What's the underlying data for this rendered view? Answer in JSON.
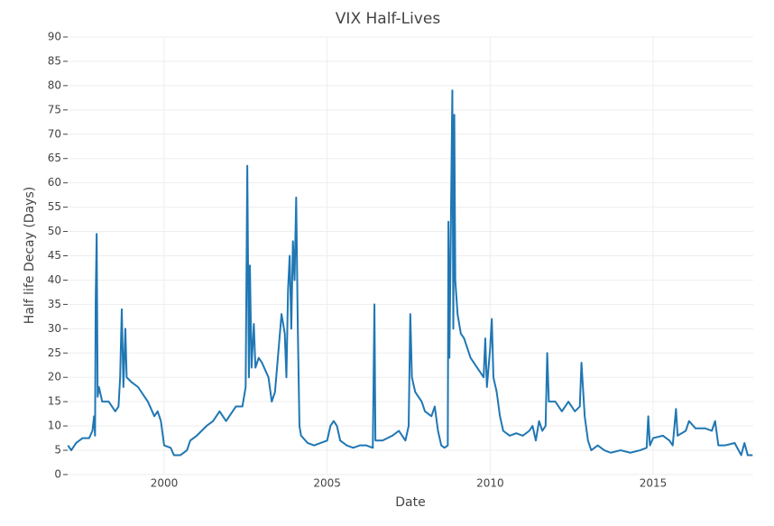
{
  "chart_data": {
    "type": "line",
    "title": "VIX Half-Lives",
    "x_label": "Date",
    "y_label": "Half life Decay (Days)",
    "color": "#1f77b4",
    "grid": true,
    "xlim": [
      1997.04,
      2018.07
    ],
    "xticks": [
      2000,
      2005,
      2010,
      2015
    ],
    "ylim": [
      0,
      90
    ],
    "yticks": [
      0,
      5,
      10,
      15,
      20,
      25,
      30,
      35,
      40,
      45,
      50,
      55,
      60,
      65,
      70,
      75,
      80,
      85,
      90
    ],
    "x": [
      1997.05,
      1997.15,
      1997.3,
      1997.5,
      1997.7,
      1997.8,
      1997.85,
      1997.88,
      1997.9,
      1997.93,
      1997.96,
      1998.0,
      1998.1,
      1998.3,
      1998.5,
      1998.6,
      1998.65,
      1998.7,
      1998.75,
      1998.81,
      1998.85,
      1999.0,
      1999.2,
      1999.4,
      1999.5,
      1999.7,
      1999.8,
      1999.9,
      2000.0,
      2000.2,
      2000.3,
      2000.5,
      2000.7,
      2000.8,
      2001.0,
      2001.3,
      2001.5,
      2001.7,
      2001.9,
      2002.0,
      2002.2,
      2002.4,
      2002.5,
      2002.55,
      2002.6,
      2002.63,
      2002.68,
      2002.75,
      2002.8,
      2002.9,
      2003.0,
      2003.2,
      2003.3,
      2003.4,
      2003.5,
      2003.6,
      2003.7,
      2003.75,
      2003.8,
      2003.85,
      2003.9,
      2003.95,
      2004.0,
      2004.05,
      2004.1,
      2004.15,
      2004.2,
      2004.4,
      2004.6,
      2004.8,
      2005.0,
      2005.1,
      2005.2,
      2005.3,
      2005.4,
      2005.6,
      2005.8,
      2006.0,
      2006.2,
      2006.4,
      2006.45,
      2006.48,
      2006.7,
      2007.0,
      2007.2,
      2007.4,
      2007.5,
      2007.55,
      2007.6,
      2007.7,
      2007.9,
      2008.0,
      2008.2,
      2008.3,
      2008.4,
      2008.5,
      2008.6,
      2008.7,
      2008.72,
      2008.75,
      2008.84,
      2008.87,
      2008.9,
      2008.93,
      2009.0,
      2009.1,
      2009.2,
      2009.4,
      2009.6,
      2009.8,
      2009.85,
      2009.9,
      2010.0,
      2010.05,
      2010.1,
      2010.2,
      2010.3,
      2010.4,
      2010.6,
      2010.8,
      2011.0,
      2011.2,
      2011.3,
      2011.4,
      2011.5,
      2011.6,
      2011.7,
      2011.75,
      2011.8,
      2012.0,
      2012.2,
      2012.4,
      2012.6,
      2012.75,
      2012.8,
      2012.9,
      2013.0,
      2013.1,
      2013.3,
      2013.5,
      2013.7,
      2014.0,
      2014.3,
      2014.6,
      2014.8,
      2014.85,
      2014.9,
      2015.0,
      2015.3,
      2015.5,
      2015.6,
      2015.7,
      2015.75,
      2016.0,
      2016.1,
      2016.3,
      2016.6,
      2016.8,
      2016.9,
      2017.0,
      2017.2,
      2017.5,
      2017.7,
      2017.8,
      2017.9,
      2018.05
    ],
    "values": [
      6,
      5,
      6.5,
      7.5,
      7.5,
      9,
      12,
      8,
      36,
      49.5,
      16,
      18,
      15,
      15,
      13,
      14,
      20,
      34,
      18,
      30,
      20,
      19,
      18,
      16,
      15,
      12,
      13,
      11,
      6,
      5.5,
      4,
      4,
      5,
      7,
      8,
      10,
      11,
      13,
      11,
      12,
      14,
      14,
      18,
      63.5,
      20,
      43,
      22,
      31,
      22,
      24,
      23,
      20,
      15,
      17,
      25,
      33,
      29,
      20,
      38,
      45,
      30,
      48,
      40,
      57,
      30,
      10,
      8,
      6.5,
      6,
      6.5,
      7,
      10,
      11,
      10,
      7,
      6,
      5.5,
      6,
      6,
      5.5,
      35,
      7,
      7,
      8,
      9,
      7,
      10,
      33,
      20,
      17,
      15,
      13,
      12,
      14,
      9,
      6,
      5.5,
      6,
      52,
      24,
      79,
      30,
      74,
      40,
      33,
      29,
      28,
      24,
      22,
      20,
      28,
      18,
      26,
      32,
      20,
      17,
      12,
      9,
      8,
      8.5,
      8,
      9,
      10,
      7,
      11,
      9,
      10,
      25,
      15,
      15,
      13,
      15,
      13,
      14,
      23,
      12,
      7,
      5,
      6,
      5,
      4.5,
      5,
      4.5,
      5,
      5.5,
      12,
      6,
      7.5,
      8,
      7,
      6,
      13.5,
      8,
      9,
      11,
      9.5,
      9.5,
      9,
      11,
      6,
      6,
      6.5,
      4,
      6.5,
      4,
      4
    ]
  }
}
